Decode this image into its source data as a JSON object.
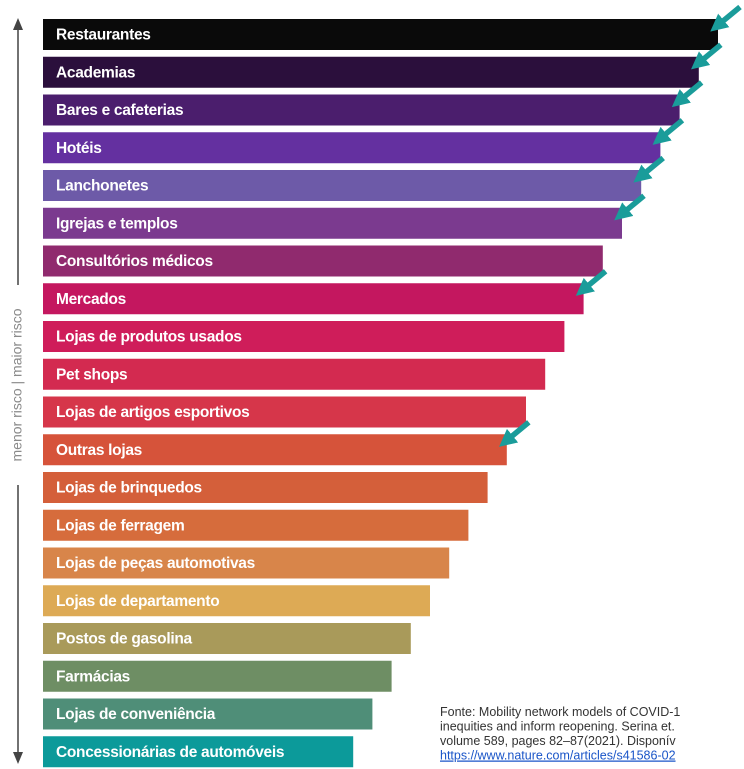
{
  "axis_label": "menor risco | maior risco",
  "items": [
    {
      "label": "Restaurantes",
      "color": "#0a0a0a",
      "arrow": true
    },
    {
      "label": "Academias",
      "color": "#2b0f3c",
      "arrow": true
    },
    {
      "label": "Bares e cafeterias",
      "color": "#4b1e6d",
      "arrow": true
    },
    {
      "label": "Hotéis",
      "color": "#6430a0",
      "arrow": true
    },
    {
      "label": "Lanchonetes",
      "color": "#6d5aa8",
      "arrow": true
    },
    {
      "label": "Igrejas e templos",
      "color": "#7b3a8f",
      "arrow": true
    },
    {
      "label": "Consultórios médicos",
      "color": "#902a6e",
      "arrow": false
    },
    {
      "label": "Mercados",
      "color": "#c4175f",
      "arrow": true
    },
    {
      "label": "Lojas de produtos usados",
      "color": "#cf1d5a",
      "arrow": false
    },
    {
      "label": "Pet shops",
      "color": "#d32a50",
      "arrow": false
    },
    {
      "label": "Lojas de artigos esportivos",
      "color": "#d6364a",
      "arrow": false
    },
    {
      "label": "Outras lojas",
      "color": "#d6533a",
      "arrow": true
    },
    {
      "label": "Lojas de brinquedos",
      "color": "#d45f3a",
      "arrow": false
    },
    {
      "label": "Lojas de ferragem",
      "color": "#d66c3c",
      "arrow": false
    },
    {
      "label": "Lojas de peças automotivas",
      "color": "#d8854a",
      "arrow": false
    },
    {
      "label": "Lojas de departamento",
      "color": "#ddaa55",
      "arrow": false
    },
    {
      "label": "Postos de gasolina",
      "color": "#a99a5a",
      "arrow": false
    },
    {
      "label": "Farmácias",
      "color": "#6e8e64",
      "arrow": false
    },
    {
      "label": "Lojas de conveniência",
      "color": "#4f8e78",
      "arrow": false
    },
    {
      "label": "Concessionárias de automóveis",
      "color": "#0c9a9a",
      "arrow": false
    }
  ],
  "source": [
    "Fonte: Mobility network models of COVID-1",
    "inequities and inform reopening. Serina et.",
    "volume 589, pages 82–87(2021). Disponív",
    "https://www.nature.com/articles/s41586-02"
  ]
}
